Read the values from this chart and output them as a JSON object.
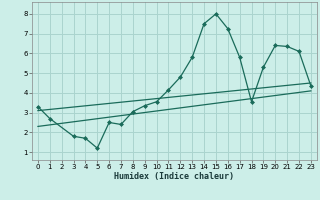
{
  "xlabel": "Humidex (Indice chaleur)",
  "xlim": [
    -0.5,
    23.5
  ],
  "ylim": [
    0.6,
    8.6
  ],
  "xticks": [
    0,
    1,
    2,
    3,
    4,
    5,
    6,
    7,
    8,
    9,
    10,
    11,
    12,
    13,
    14,
    15,
    16,
    17,
    18,
    19,
    20,
    21,
    22,
    23
  ],
  "yticks": [
    1,
    2,
    3,
    4,
    5,
    6,
    7,
    8
  ],
  "bg_color": "#cceee8",
  "grid_color": "#aad4ce",
  "line_color": "#1a6b5a",
  "line1_x": [
    0,
    1,
    3,
    4,
    5,
    6,
    7,
    8,
    9,
    10,
    11,
    12,
    13,
    14,
    15,
    16,
    17,
    18,
    19,
    20,
    21,
    22,
    23
  ],
  "line1_y": [
    3.3,
    2.7,
    1.8,
    1.7,
    1.2,
    2.5,
    2.4,
    3.05,
    3.35,
    3.55,
    4.15,
    4.8,
    5.8,
    7.5,
    8.0,
    7.25,
    5.8,
    3.55,
    5.3,
    6.4,
    6.35,
    6.1,
    4.35
  ],
  "line2_x": [
    0,
    23
  ],
  "line2_y": [
    2.3,
    4.1
  ],
  "line3_x": [
    0,
    23
  ],
  "line3_y": [
    3.1,
    4.5
  ],
  "tick_fontsize": 5.0,
  "xlabel_fontsize": 6.0
}
